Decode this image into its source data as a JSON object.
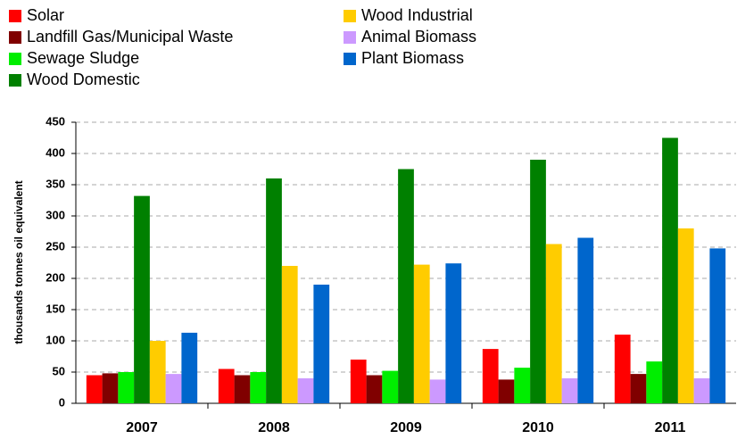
{
  "chart_data": {
    "type": "bar",
    "y_label": "thousands tonnes oil equivalent",
    "categories": [
      "2007",
      "2008",
      "2009",
      "2010",
      "2011"
    ],
    "series": [
      {
        "name": "Solar",
        "color": "#ff0000",
        "values": [
          45,
          55,
          70,
          87,
          110
        ]
      },
      {
        "name": "Landfill Gas/Municipal Waste",
        "color": "#800000",
        "values": [
          48,
          45,
          45,
          38,
          47
        ]
      },
      {
        "name": "Sewage Sludge",
        "color": "#00ee00",
        "values": [
          50,
          50,
          52,
          57,
          67
        ]
      },
      {
        "name": "Wood Domestic",
        "color": "#008000",
        "values": [
          332,
          360,
          375,
          390,
          425
        ]
      },
      {
        "name": "Wood Industrial",
        "color": "#ffcc00",
        "values": [
          100,
          220,
          222,
          255,
          280
        ]
      },
      {
        "name": "Animal Biomass",
        "color": "#cc99ff",
        "values": [
          47,
          40,
          38,
          40,
          40
        ]
      },
      {
        "name": "Plant Biomass",
        "color": "#0066cc",
        "values": [
          113,
          190,
          224,
          265,
          248
        ]
      }
    ],
    "ylim": [
      0,
      450
    ],
    "yticks": [
      0,
      50,
      100,
      150,
      200,
      250,
      300,
      350,
      400,
      450
    ],
    "grid": true,
    "legend": "top-left"
  }
}
